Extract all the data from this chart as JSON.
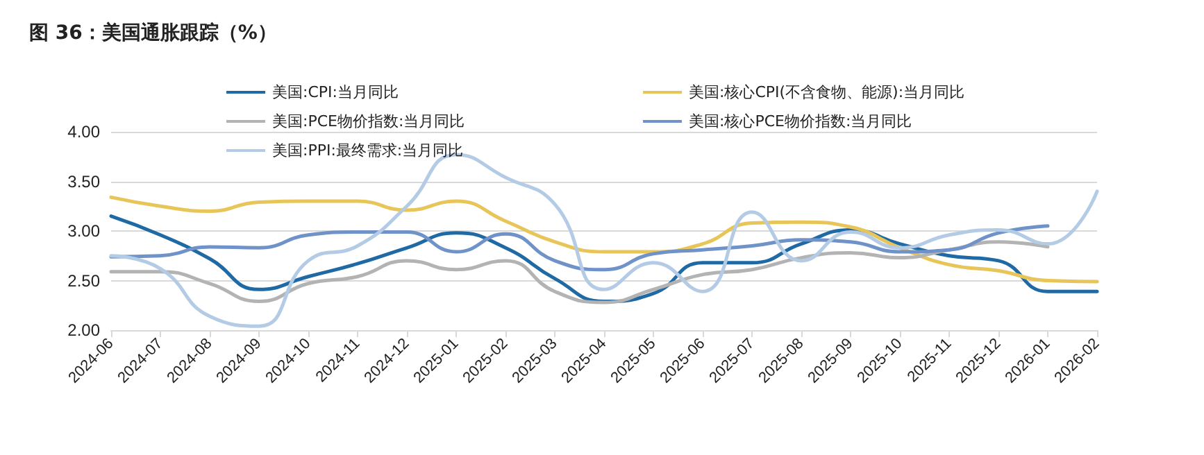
{
  "chart_data": {
    "type": "line",
    "title": "图 36：美国通胀跟踪（%）",
    "categories": [
      "2024-06",
      "2024-07",
      "2024-08",
      "2024-09",
      "2024-10",
      "2024-11",
      "2024-12",
      "2025-01",
      "2025-02",
      "2025-03",
      "2025-04",
      "2025-05",
      "2025-06",
      "2025-07",
      "2025-08",
      "2025-09",
      "2025-10",
      "2025-11",
      "2025-12",
      "2026-01",
      "2026-02"
    ],
    "series": [
      {
        "name": "美国:CPI:当月同比",
        "color": "#1f6aa5",
        "values": [
          3.15,
          2.96,
          2.72,
          2.41,
          2.54,
          2.67,
          2.83,
          2.98,
          2.83,
          2.52,
          2.29,
          2.37,
          2.68,
          2.68,
          2.87,
          3.01,
          2.87,
          2.75,
          2.7,
          2.39,
          2.39
        ]
      },
      {
        "name": "美国:核心CPI(不含食物、能源):当月同比",
        "color": "#e8c558",
        "values": [
          3.34,
          3.25,
          3.2,
          3.29,
          3.3,
          3.3,
          3.21,
          3.3,
          3.1,
          2.89,
          2.79,
          2.79,
          2.87,
          3.08,
          3.09,
          3.04,
          2.83,
          2.66,
          2.6,
          2.5,
          2.49
        ]
      },
      {
        "name": "美国:PCE物价指数:当月同比",
        "color": "#b3b3b3",
        "values": [
          2.59,
          2.59,
          2.47,
          2.29,
          2.47,
          2.54,
          2.7,
          2.61,
          2.7,
          2.39,
          2.28,
          2.41,
          2.56,
          2.61,
          2.73,
          2.78,
          2.73,
          2.81,
          2.89,
          2.84,
          null
        ]
      },
      {
        "name": "美国:核心PCE物价指数:当月同比",
        "color": "#6f93c8",
        "values": [
          2.74,
          2.75,
          2.84,
          2.83,
          2.96,
          2.99,
          2.99,
          2.79,
          2.97,
          2.7,
          2.61,
          2.77,
          2.81,
          2.85,
          2.91,
          2.89,
          2.79,
          2.81,
          2.98,
          3.05,
          null
        ]
      },
      {
        "name": "美国:PPI:最终需求:当月同比",
        "color": "#b4cbe6",
        "values": [
          2.75,
          2.62,
          2.14,
          2.04,
          2.7,
          2.85,
          3.25,
          3.77,
          3.54,
          3.27,
          2.41,
          2.68,
          2.39,
          3.19,
          2.7,
          2.99,
          2.83,
          2.96,
          3.01,
          2.87,
          3.4
        ]
      }
    ],
    "ylim": [
      2,
      4
    ],
    "yticks": [
      {
        "value": 2,
        "label": "2.00"
      },
      {
        "value": 2.5,
        "label": "2.50"
      },
      {
        "value": 3,
        "label": "3.00"
      },
      {
        "value": 3.5,
        "label": "3.50"
      },
      {
        "value": 4,
        "label": "4.00"
      }
    ],
    "grid": "y",
    "legend": "top",
    "marker": "none",
    "line_style": "solid"
  }
}
